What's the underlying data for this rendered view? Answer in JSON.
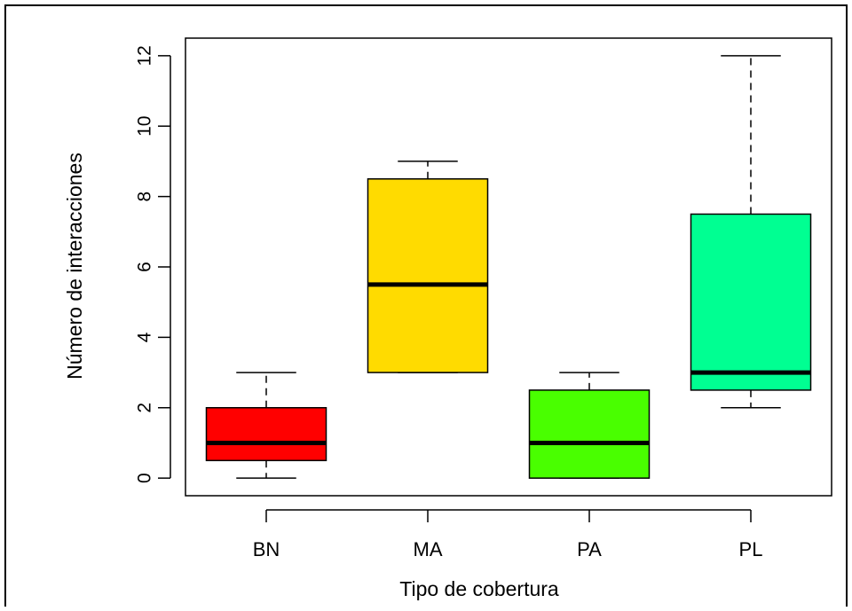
{
  "chart_data": {
    "type": "boxplot",
    "xlabel": "Tipo de cobertura",
    "ylabel": "Número de interacciones",
    "ylim": [
      -0.5,
      12.5
    ],
    "yticks": [
      0,
      2,
      4,
      6,
      8,
      10,
      12
    ],
    "ytick_labels": [
      "0",
      "2",
      "4",
      "6",
      "8",
      "10",
      "12"
    ],
    "categories": [
      "BN",
      "MA",
      "PA",
      "PL"
    ],
    "boxes": [
      {
        "category": "BN",
        "min": 0,
        "q1": 0.5,
        "median": 1,
        "q3": 2,
        "max": 3,
        "color": "#ff0000"
      },
      {
        "category": "MA",
        "min": 3,
        "q1": 3,
        "median": 5.5,
        "q3": 8.5,
        "max": 9,
        "color": "#ffdb00"
      },
      {
        "category": "PA",
        "min": 0,
        "q1": 0,
        "median": 1,
        "q3": 2.5,
        "max": 3,
        "color": "#49ff00"
      },
      {
        "category": "PL",
        "min": 2,
        "q1": 2.5,
        "median": 3,
        "q3": 7.5,
        "max": 12,
        "color": "#00ff92"
      }
    ],
    "grid": false,
    "legend": "none"
  }
}
